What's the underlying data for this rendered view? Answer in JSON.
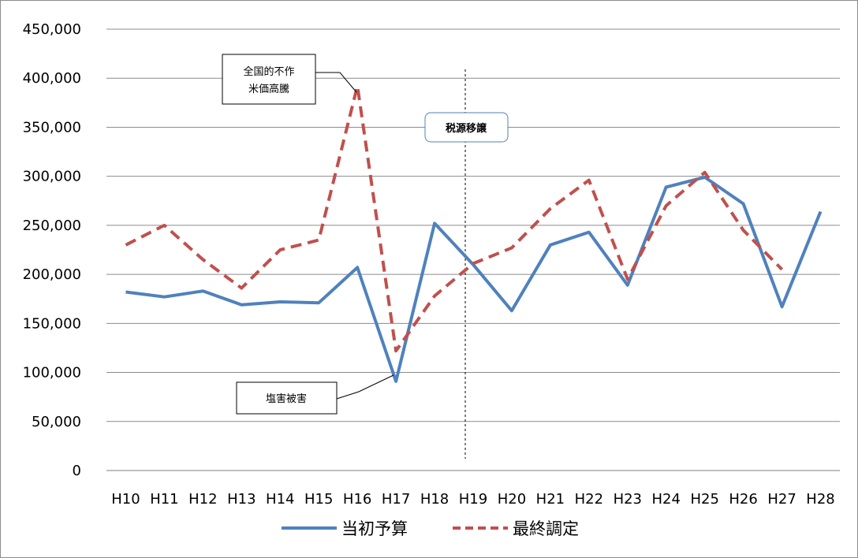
{
  "chart_data": {
    "type": "line",
    "categories": [
      "H10",
      "H11",
      "H12",
      "H13",
      "H14",
      "H15",
      "H16",
      "H17",
      "H18",
      "H19",
      "H20",
      "H21",
      "H22",
      "H23",
      "H24",
      "H25",
      "H26",
      "H27",
      "H28"
    ],
    "ylim": [
      0,
      450000
    ],
    "yticks": [
      0,
      50000,
      100000,
      150000,
      200000,
      250000,
      300000,
      350000,
      400000,
      450000
    ],
    "ytick_labels": [
      "0",
      "50,000",
      "100,000",
      "150,000",
      "200,000",
      "250,000",
      "300,000",
      "350,000",
      "400,000",
      "450,000"
    ],
    "grid": true,
    "legend_position": "bottom",
    "series": [
      {
        "name": "当初予算",
        "color": "#4f81bd",
        "style": "solid",
        "values": [
          182000,
          177000,
          183000,
          169000,
          172000,
          171000,
          207000,
          91000,
          252000,
          210000,
          163000,
          230000,
          243000,
          189000,
          289000,
          299000,
          272000,
          167000,
          264000
        ]
      },
      {
        "name": "最終調定",
        "color": "#c0504d",
        "style": "dashed",
        "values": [
          230000,
          250000,
          215000,
          186000,
          225000,
          235000,
          392000,
          122000,
          178000,
          211000,
          227000,
          267000,
          296000,
          195000,
          270000,
          304000,
          245000,
          205000,
          null
        ]
      }
    ],
    "annotations": [
      {
        "label": "全国的不作",
        "label2": "米価高騰"
      },
      {
        "label": "塩害被害"
      },
      {
        "label": "税源移譲"
      }
    ]
  }
}
